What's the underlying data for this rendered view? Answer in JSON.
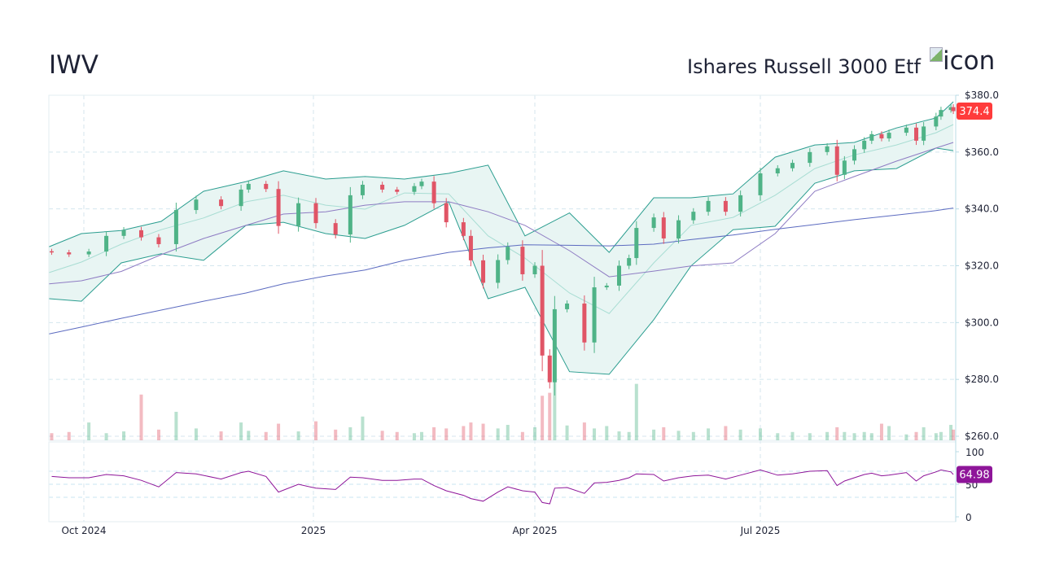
{
  "header": {
    "ticker": "IWV",
    "name": "Ishares Russell 3000 Etf",
    "logo_alt": "icon"
  },
  "colors": {
    "up": "#4fb387",
    "down": "#e05566",
    "band": "#2a9d8f",
    "band_fill": "#e8f5f3",
    "band_mid": "#a8ddd3",
    "sma50": "#8e7cc3",
    "sma200": "#5c6bc0",
    "rsi": "#8e1599",
    "last_price_badge": "#ff3b3b",
    "rsi_badge": "#8e1599",
    "grid": "#d4e6ee"
  },
  "chart_data": [
    {
      "type": "candlestick",
      "ylim": [
        260,
        380
      ],
      "y_ticks": [
        "$380.0",
        "$360.0",
        "$340.0",
        "$320.0",
        "$300.0",
        "$280.0",
        "$260.0"
      ],
      "y_tick_values": [
        380,
        360,
        340,
        320,
        300,
        280,
        260
      ],
      "x_ticks": [
        {
          "label": "Oct 2024",
          "date": "2024-10-01"
        },
        {
          "label": "2025",
          "date": "2025-01-01"
        },
        {
          "label": "Apr 2025",
          "date": "2025-04-01"
        },
        {
          "label": "Jul 2025",
          "date": "2025-07-01"
        }
      ],
      "grid": true,
      "last_price_label": "374.4",
      "prices": [
        {
          "d": "2024-09-18",
          "c": 324.7,
          "v": 12
        },
        {
          "d": "2024-09-25",
          "c": 324.0,
          "v": 14
        },
        {
          "d": "2024-10-03",
          "c": 325.0,
          "v": 30
        },
        {
          "d": "2024-10-10",
          "c": 330.5,
          "v": 12
        },
        {
          "d": "2024-10-17",
          "c": 332.5,
          "v": 15
        },
        {
          "d": "2024-10-24",
          "c": 330.0,
          "v": 77
        },
        {
          "d": "2024-10-31",
          "c": 327.6,
          "v": 18
        },
        {
          "d": "2024-11-07",
          "c": 339.6,
          "v": 48
        },
        {
          "d": "2024-11-15",
          "c": 343.3,
          "v": 20
        },
        {
          "d": "2024-11-25",
          "c": 341.0,
          "v": 15
        },
        {
          "d": "2024-12-03",
          "c": 346.8,
          "v": 30
        },
        {
          "d": "2024-12-06",
          "c": 348.8,
          "v": 16
        },
        {
          "d": "2024-12-13",
          "c": 347.0,
          "v": 14
        },
        {
          "d": "2024-12-18",
          "c": 334.0,
          "v": 28
        },
        {
          "d": "2024-12-26",
          "c": 342.0,
          "v": 15
        },
        {
          "d": "2025-01-02",
          "c": 335.0,
          "v": 32
        },
        {
          "d": "2025-01-10",
          "c": 331.0,
          "v": 18
        },
        {
          "d": "2025-01-16",
          "c": 344.8,
          "v": 22
        },
        {
          "d": "2025-01-21",
          "c": 348.5,
          "v": 40
        },
        {
          "d": "2025-01-29",
          "c": 346.8,
          "v": 16
        },
        {
          "d": "2025-02-04",
          "c": 346.0,
          "v": 14
        },
        {
          "d": "2025-02-11",
          "c": 348.0,
          "v": 12
        },
        {
          "d": "2025-02-14",
          "c": 349.6,
          "v": 14
        },
        {
          "d": "2025-02-19",
          "c": 342.0,
          "v": 22
        },
        {
          "d": "2025-02-24",
          "c": 335.3,
          "v": 20
        },
        {
          "d": "2025-03-03",
          "c": 330.5,
          "v": 24
        },
        {
          "d": "2025-03-06",
          "c": 321.9,
          "v": 30
        },
        {
          "d": "2025-03-11",
          "c": 314.0,
          "v": 28
        },
        {
          "d": "2025-03-17",
          "c": 322.0,
          "v": 20
        },
        {
          "d": "2025-03-21",
          "c": 326.7,
          "v": 26
        },
        {
          "d": "2025-03-27",
          "c": 317.0,
          "v": 14
        },
        {
          "d": "2025-04-01",
          "c": 320.0,
          "v": 22
        },
        {
          "d": "2025-04-04",
          "c": 288.4,
          "v": 75
        },
        {
          "d": "2025-04-07",
          "c": 279.0,
          "v": 80
        },
        {
          "d": "2025-04-09",
          "c": 304.7,
          "v": 100
        },
        {
          "d": "2025-04-14",
          "c": 306.7,
          "v": 25
        },
        {
          "d": "2025-04-21",
          "c": 293.0,
          "v": 30
        },
        {
          "d": "2025-04-25",
          "c": 312.4,
          "v": 20
        },
        {
          "d": "2025-04-30",
          "c": 313.0,
          "v": 24
        },
        {
          "d": "2025-05-05",
          "c": 320.0,
          "v": 15
        },
        {
          "d": "2025-05-09",
          "c": 322.7,
          "v": 14
        },
        {
          "d": "2025-05-12",
          "c": 333.3,
          "v": 95
        },
        {
          "d": "2025-05-19",
          "c": 337.0,
          "v": 18
        },
        {
          "d": "2025-05-23",
          "c": 329.6,
          "v": 22
        },
        {
          "d": "2025-05-29",
          "c": 336.0,
          "v": 16
        },
        {
          "d": "2025-06-04",
          "c": 339.0,
          "v": 14
        },
        {
          "d": "2025-06-10",
          "c": 342.8,
          "v": 20
        },
        {
          "d": "2025-06-17",
          "c": 339.0,
          "v": 24
        },
        {
          "d": "2025-06-23",
          "c": 344.8,
          "v": 18
        },
        {
          "d": "2025-07-01",
          "c": 352.5,
          "v": 20
        },
        {
          "d": "2025-07-08",
          "c": 354.3,
          "v": 12
        },
        {
          "d": "2025-07-14",
          "c": 356.2,
          "v": 14
        },
        {
          "d": "2025-07-21",
          "c": 360.0,
          "v": 12
        },
        {
          "d": "2025-07-28",
          "c": 362.0,
          "v": 14
        },
        {
          "d": "2025-08-01",
          "c": 352.0,
          "v": 22
        },
        {
          "d": "2025-08-04",
          "c": 357.0,
          "v": 14
        },
        {
          "d": "2025-08-08",
          "c": 361.0,
          "v": 12
        },
        {
          "d": "2025-08-12",
          "c": 364.0,
          "v": 14
        },
        {
          "d": "2025-08-15",
          "c": 366.3,
          "v": 12
        },
        {
          "d": "2025-08-19",
          "c": 364.8,
          "v": 28
        },
        {
          "d": "2025-08-22",
          "c": 366.8,
          "v": 24
        },
        {
          "d": "2025-08-29",
          "c": 368.6,
          "v": 10
        },
        {
          "d": "2025-09-02",
          "c": 364.0,
          "v": 14
        },
        {
          "d": "2025-09-05",
          "c": 369.0,
          "v": 22
        },
        {
          "d": "2025-09-10",
          "c": 372.5,
          "v": 12
        },
        {
          "d": "2025-09-12",
          "c": 374.8,
          "v": 14
        },
        {
          "d": "2025-09-16",
          "c": 375.8,
          "v": 26
        },
        {
          "d": "2025-09-17",
          "c": 374.4,
          "v": 18
        }
      ],
      "indicators": [
        {
          "d": "2024-09-17",
          "upper": 326.7,
          "mid": 317.6,
          "lower": 308.4,
          "sma50": 313.6,
          "sma200": 296.0
        },
        {
          "d": "2024-09-30",
          "upper": 331.3,
          "mid": 321.3,
          "lower": 307.5,
          "sma50": 314.7,
          "sma200": 298.4
        },
        {
          "d": "2024-10-16",
          "upper": 332.4,
          "mid": 327.6,
          "lower": 321.0,
          "sma50": 318.0,
          "sma200": 301.5
        },
        {
          "d": "2024-11-01",
          "upper": 335.6,
          "mid": 332.7,
          "lower": 324.2,
          "sma50": 323.9,
          "sma200": 304.4
        },
        {
          "d": "2024-11-18",
          "upper": 346.2,
          "mid": 336.8,
          "lower": 321.9,
          "sma50": 329.6,
          "sma200": 307.5
        },
        {
          "d": "2024-12-05",
          "upper": 349.6,
          "mid": 342.5,
          "lower": 334.2,
          "sma50": 334.2,
          "sma200": 310.4
        },
        {
          "d": "2024-12-20",
          "upper": 353.4,
          "mid": 344.8,
          "lower": 335.3,
          "sma50": 338.2,
          "sma200": 313.6
        },
        {
          "d": "2025-01-06",
          "upper": 350.5,
          "mid": 341.3,
          "lower": 331.3,
          "sma50": 339.0,
          "sma200": 316.4
        },
        {
          "d": "2025-01-22",
          "upper": 351.4,
          "mid": 339.9,
          "lower": 329.6,
          "sma50": 341.3,
          "sma200": 318.5
        },
        {
          "d": "2025-02-07",
          "upper": 350.5,
          "mid": 345.6,
          "lower": 334.2,
          "sma50": 342.5,
          "sma200": 321.9
        },
        {
          "d": "2025-02-25",
          "upper": 352.5,
          "mid": 345.3,
          "lower": 342.5,
          "sma50": 342.5,
          "sma200": 324.7
        },
        {
          "d": "2025-03-13",
          "upper": 355.4,
          "mid": 330.5,
          "lower": 308.4,
          "sma50": 339.0,
          "sma200": 326.3
        },
        {
          "d": "2025-03-28",
          "upper": 330.5,
          "mid": 322.7,
          "lower": 312.4,
          "sma50": 334.2,
          "sma200": 327.4
        },
        {
          "d": "2025-04-15",
          "upper": 338.6,
          "mid": 310.4,
          "lower": 282.7,
          "sma50": 325.3,
          "sma200": 327.2
        },
        {
          "d": "2025-05-01",
          "upper": 324.7,
          "mid": 303.2,
          "lower": 281.8,
          "sma50": 316.1,
          "sma200": 327.0
        },
        {
          "d": "2025-05-19",
          "upper": 343.9,
          "mid": 321.0,
          "lower": 301.0,
          "sma50": 318.1,
          "sma200": 327.6
        },
        {
          "d": "2025-06-03",
          "upper": 343.9,
          "mid": 334.2,
          "lower": 319.9,
          "sma50": 319.9,
          "sma200": 329.2
        },
        {
          "d": "2025-06-20",
          "upper": 345.3,
          "mid": 337.0,
          "lower": 332.7,
          "sma50": 321.0,
          "sma200": 330.8
        },
        {
          "d": "2025-07-07",
          "upper": 358.2,
          "mid": 344.8,
          "lower": 333.9,
          "sma50": 331.3,
          "sma200": 332.8
        },
        {
          "d": "2025-07-23",
          "upper": 362.5,
          "mid": 354.2,
          "lower": 349.0,
          "sma50": 346.2,
          "sma200": 334.5
        },
        {
          "d": "2025-08-08",
          "upper": 363.4,
          "mid": 359.0,
          "lower": 353.4,
          "sma50": 351.4,
          "sma200": 336.2
        },
        {
          "d": "2025-08-25",
          "upper": 368.5,
          "mid": 362.5,
          "lower": 354.2,
          "sma50": 356.8,
          "sma200": 337.8
        },
        {
          "d": "2025-09-10",
          "upper": 372.0,
          "mid": 366.8,
          "lower": 361.4,
          "sma50": 361.4,
          "sma200": 339.4
        },
        {
          "d": "2025-09-17",
          "upper": 377.7,
          "mid": 369.7,
          "lower": 360.5,
          "sma50": 363.4,
          "sma200": 340.3
        }
      ]
    },
    {
      "type": "line",
      "ylim": [
        0,
        100
      ],
      "y_ticks": [
        "100",
        "50",
        "0"
      ],
      "y_tick_values": [
        100,
        50,
        0
      ],
      "guide_levels": [
        70,
        50,
        30
      ],
      "last_value_label": "64.98",
      "rsi": [
        62,
        60,
        60,
        65,
        63,
        56,
        46,
        68,
        66,
        58,
        68,
        70,
        62,
        38,
        50,
        44,
        42,
        61,
        60,
        56,
        56,
        58,
        58,
        48,
        40,
        33,
        28,
        24,
        38,
        46,
        40,
        38,
        22,
        20,
        44,
        45,
        36,
        52,
        53,
        56,
        60,
        66,
        65,
        55,
        60,
        63,
        64,
        58,
        64,
        72,
        64,
        66,
        70,
        71,
        48,
        55,
        60,
        65,
        67,
        63,
        64,
        68,
        55,
        63,
        69,
        72,
        69,
        64.98
      ]
    }
  ]
}
